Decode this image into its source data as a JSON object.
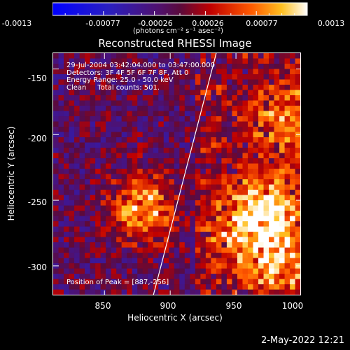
{
  "chart_data": {
    "type": "heatmap",
    "title": "Reconstructed RHESSI Image",
    "xlabel": "Heliocentric X (arcsec)",
    "ylabel": "Heliocentric Y (arcsec)",
    "xlim": [
      811,
      1000
    ],
    "ylim": [
      -323,
      -138
    ],
    "x_ticks": [
      "850",
      "900",
      "950",
      "1000"
    ],
    "y_ticks": [
      "-150",
      "-200",
      "-250",
      "-300"
    ],
    "colorbar": {
      "range": [
        -0.0013,
        0.0013
      ],
      "tick_labels": [
        "-0.0013",
        "-0.00077",
        "-0.00026",
        "0.00026",
        "0.00077",
        "0.0013"
      ],
      "unit": "(photons cm⁻² s⁻¹ asec⁻²)"
    },
    "annotations": [
      "29-Jul-2004 03:42:04.000 to 03:47:00.000",
      "Detectors: 3F 4F 5F 6F 7F 8F, Att 0",
      "Energy Range: 25.0 - 50.0 keV",
      "Clean     Total counts: 501."
    ],
    "peak_label": "Position of Peak = [887,-256]",
    "limb_line": [
      [
        887,
        -323
      ],
      [
        935,
        -138
      ]
    ],
    "bright_regions": [
      {
        "x": 880,
        "y": -255,
        "value": 0.0013
      },
      {
        "x": 975,
        "y": -255,
        "value": 0.0011
      },
      {
        "x": 985,
        "y": -300,
        "value": 0.0009
      },
      {
        "x": 990,
        "y": -190,
        "value": 0.0008
      },
      {
        "x": 955,
        "y": -275,
        "value": 0.0008
      }
    ]
  },
  "timestamp": "2-May-2022 12:21"
}
